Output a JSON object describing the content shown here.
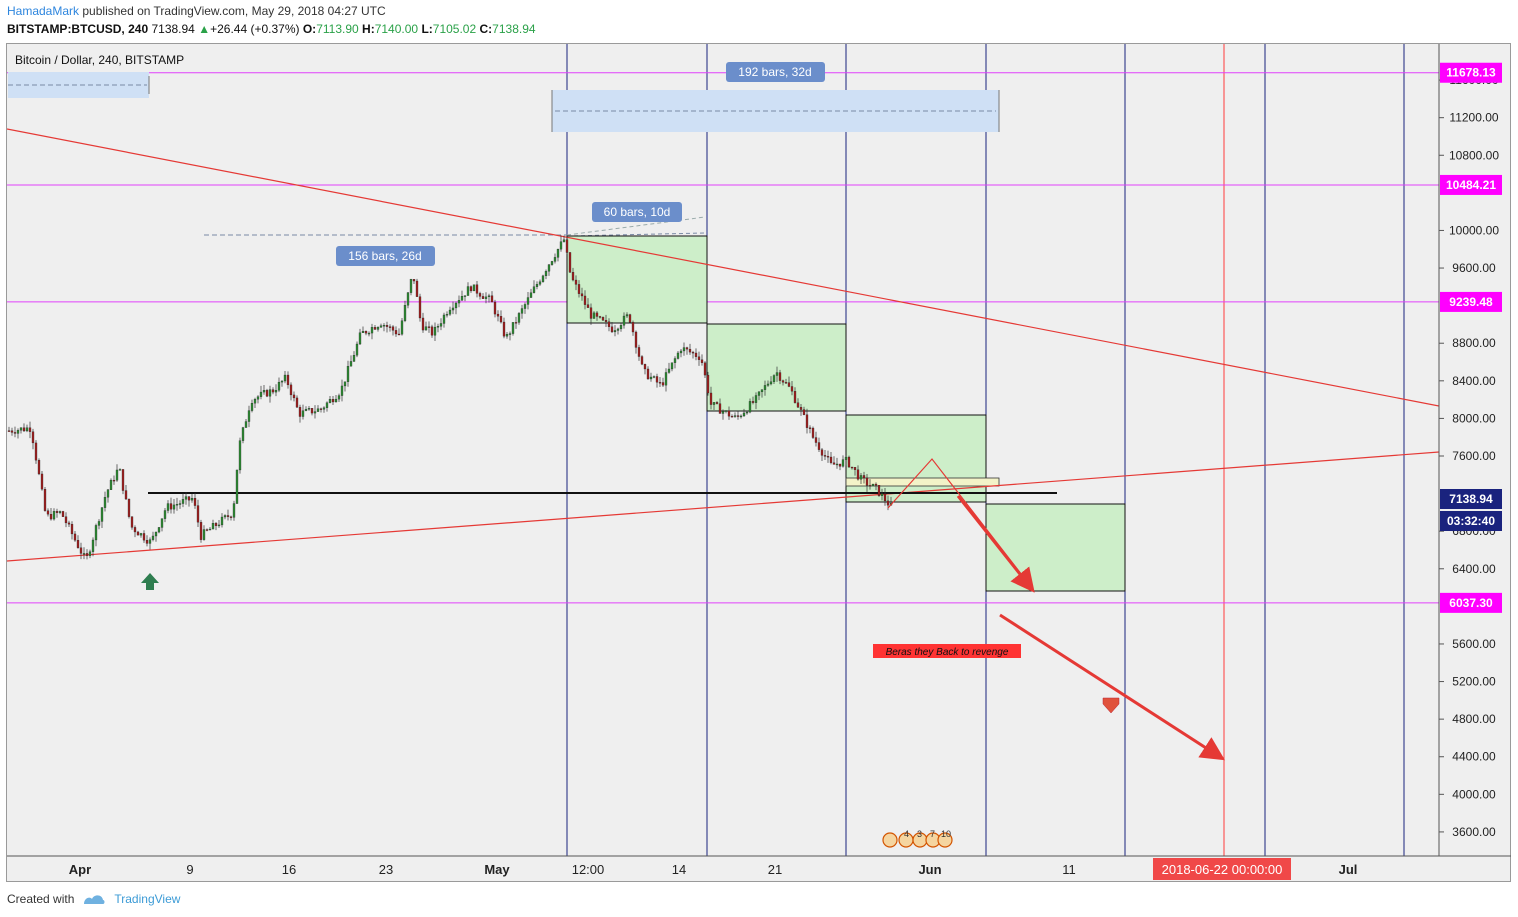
{
  "header": {
    "author": "HamadaMark",
    "published": "published on TradingView.com, May 29, 2018 04:27 UTC",
    "symbol": "BITSTAMP:BTCUSD, 240",
    "price": "7138.94",
    "change_arrow": "▲",
    "change": "+26.44 (+0.37%)",
    "o_label": "O:",
    "o": "7113.90",
    "h_label": "H:",
    "h": "7140.00",
    "l_label": "L:",
    "l": "7105.02",
    "c_label": "C:",
    "c": "7138.94"
  },
  "chart_title": "Bitcoin / Dollar, 240, BITSTAMP",
  "footer": {
    "created_with": "Created with",
    "brand": "TradingView"
  },
  "colors": {
    "background": "#efefef",
    "bull": "#2e8b34",
    "bear": "#a02020",
    "trendline": "#e53935",
    "level": "#e040fb",
    "level_label_bg": "#ff00ff",
    "vertical": "#1a237e",
    "box_fill": "#cdeec9",
    "range_fill": "#cfe0f5",
    "price_tag": "#1a237e"
  },
  "chart_data": {
    "type": "candlestick",
    "ylim": [
      3300,
      11950
    ],
    "yticks": [
      "3600.00",
      "4000.00",
      "4400.00",
      "4800.00",
      "5200.00",
      "5600.00",
      "6400.00",
      "6800.00",
      "7600.00",
      "8000.00",
      "8400.00",
      "8800.00",
      "9600.00",
      "10000.00",
      "10800.00",
      "11200.00",
      "11600.00"
    ],
    "xticks": [
      "Apr",
      "9",
      "16",
      "23",
      "May",
      "12:00",
      "14",
      "21",
      "Jun",
      "11",
      "Jul"
    ],
    "horizontal_levels": [
      "11678.13",
      "10484.21",
      "9239.48",
      "6037.30"
    ],
    "last_price": "7138.94",
    "countdown": "03:32:40",
    "crosshair_date": "2018-06-22 00:00:00",
    "annotations": {
      "range_a": "192 bars, 32d",
      "range_b": "60 bars, 10d",
      "range_c": "156 bars, 26d",
      "note": "Beras they Back to revenge"
    },
    "event_numbers": [
      "4",
      "3",
      "7",
      "10"
    ]
  }
}
